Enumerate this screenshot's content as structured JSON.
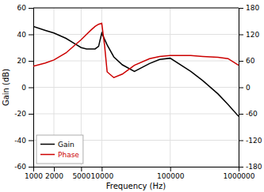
{
  "chart_data": {
    "type": "line",
    "xlabel": "Frequency (Hz)",
    "ylabel": "Gain (dB)",
    "log": "x",
    "grid": true,
    "legend": "lower left",
    "xlim": [
      1000,
      1000000
    ],
    "xticks": [
      1000,
      2000,
      5000,
      10000,
      100000,
      1000000
    ],
    "ylim": [
      -60,
      60
    ],
    "yticks": [
      -60,
      -40,
      -20,
      0,
      20,
      40,
      60
    ],
    "y2lim": [
      -180,
      180
    ],
    "y2ticks": [
      -180,
      -120,
      -60,
      0,
      60,
      120,
      180
    ],
    "series": [
      {
        "name": "Gain",
        "color": "#000000",
        "x": [
          1000,
          1500,
          2000,
          3000,
          4000,
          5000,
          6000,
          7000,
          8000,
          9000,
          10000,
          12000,
          15000,
          20000,
          30000,
          50000,
          70000,
          100000,
          200000,
          300000,
          500000,
          700000,
          1000000
        ],
        "values": [
          46,
          43,
          41,
          37,
          33,
          30,
          29,
          29,
          29,
          31,
          41,
          32,
          23,
          17,
          12,
          18,
          21,
          22,
          12,
          5,
          -5,
          -13,
          -22
        ]
      },
      {
        "name": "Phase",
        "color": "#cc0000",
        "axis": "y2",
        "x": [
          1000,
          1500,
          2000,
          3000,
          4000,
          5000,
          6000,
          7000,
          8000,
          9000,
          10000,
          11000,
          12000,
          15000,
          20000,
          30000,
          50000,
          70000,
          100000,
          200000,
          300000,
          500000,
          700000,
          1000000
        ],
        "values": [
          48,
          55,
          62,
          78,
          95,
          108,
          120,
          130,
          138,
          143,
          145,
          95,
          35,
          22,
          30,
          50,
          65,
          70,
          72,
          72,
          70,
          68,
          65,
          50
        ]
      }
    ]
  }
}
